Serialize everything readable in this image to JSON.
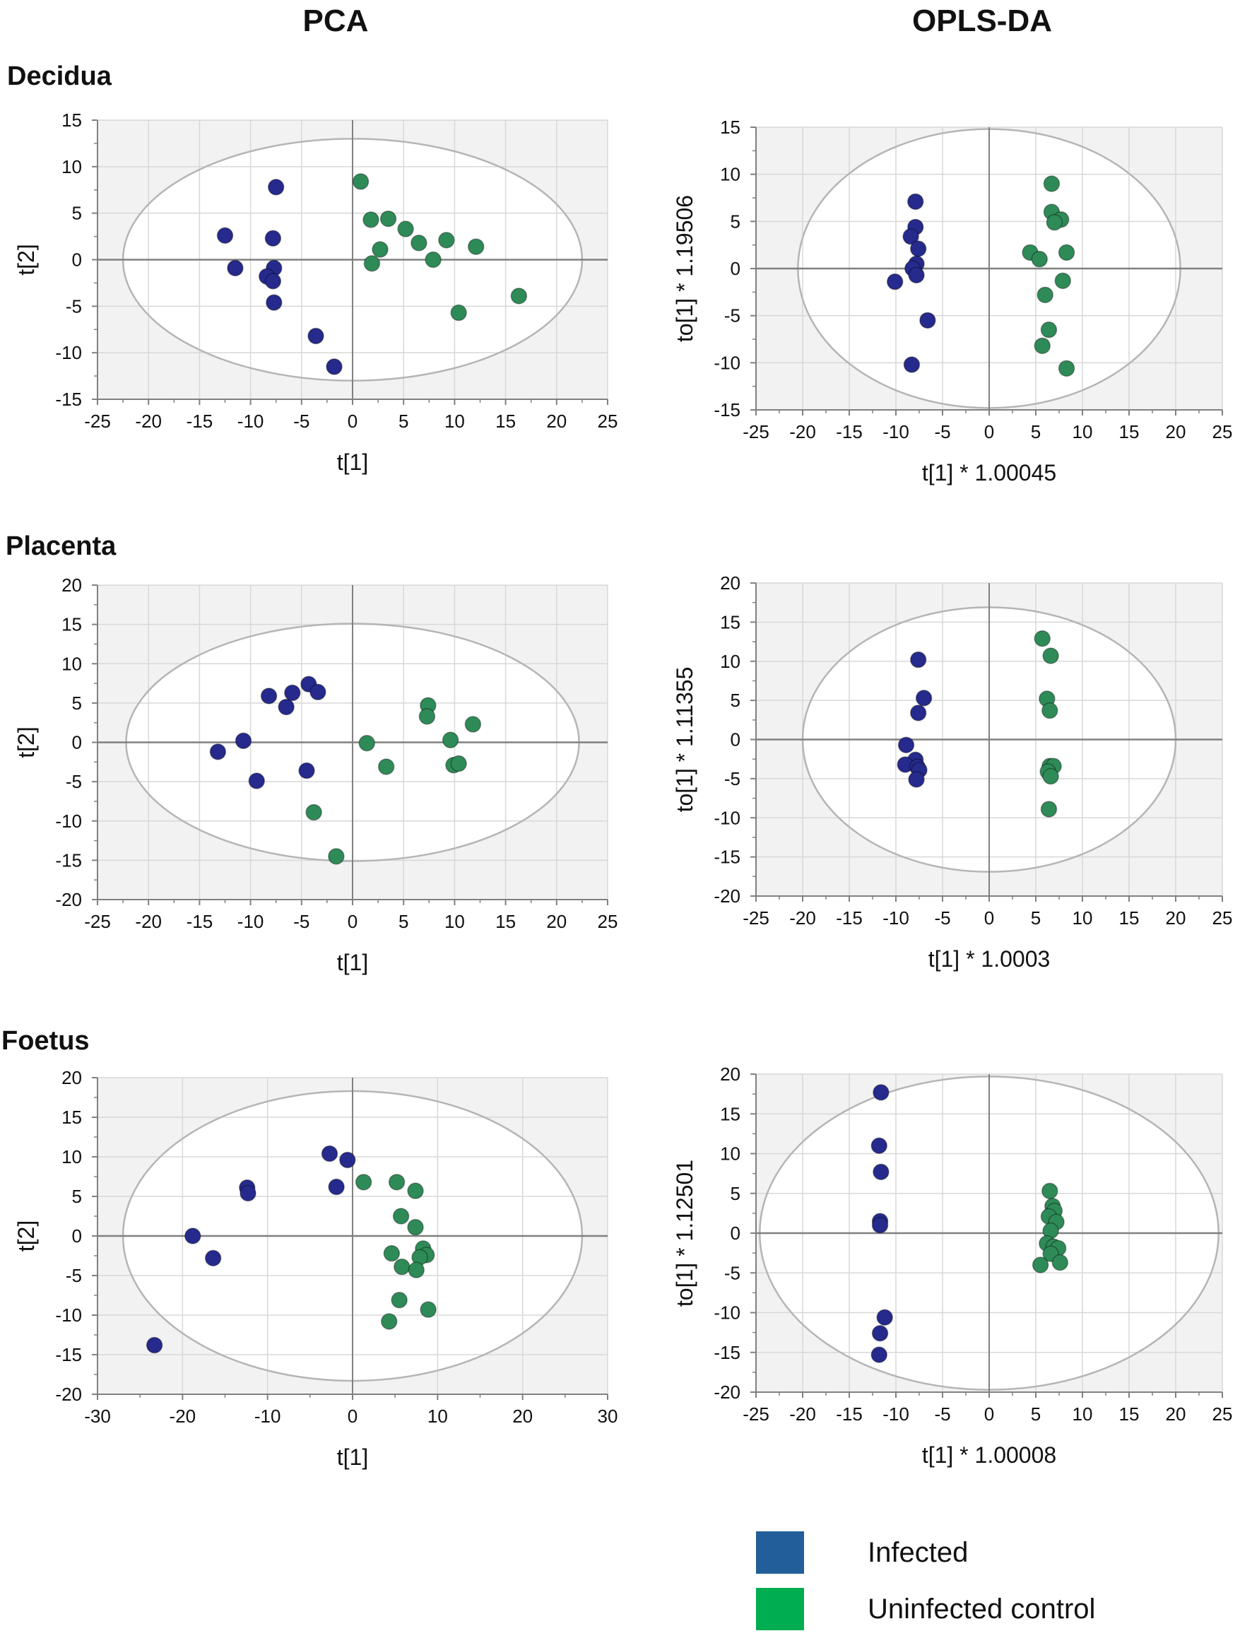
{
  "figure": {
    "column_titles": [
      "PCA",
      "OPLS-DA"
    ],
    "row_titles": [
      "Decidua",
      "Placenta",
      "Foetus"
    ],
    "colors": {
      "infected": "#262a8c",
      "uninfected": "#2e8b57",
      "background_band": "#f2f2f2",
      "grid": "#d8d8d8",
      "axis": "#808080",
      "ellipse": "#b5b5b5"
    },
    "legend": [
      {
        "label": "Infected",
        "color": "#225f9a"
      },
      {
        "label": "Uninfected control",
        "color": "#00ad50"
      }
    ]
  },
  "chart_data": [
    {
      "id": "decidua-pca",
      "type": "scatter",
      "title": "Decidua PCA",
      "xlabel": "t[1]",
      "ylabel": "t[2]",
      "xlim": [
        -25,
        25
      ],
      "ylim": [
        -15,
        15
      ],
      "xticks": [
        -25,
        -20,
        -15,
        -10,
        -5,
        0,
        5,
        10,
        15,
        20,
        25
      ],
      "yticks": [
        -15,
        -10,
        -5,
        0,
        5,
        10,
        15
      ],
      "ellipse": {
        "rx": 22.5,
        "ry": 13
      },
      "grid": true,
      "series": [
        {
          "name": "Infected",
          "points": [
            [
              -12.5,
              2.6
            ],
            [
              -11.5,
              -0.9
            ],
            [
              -7.5,
              7.8
            ],
            [
              -7.8,
              2.3
            ],
            [
              -7.7,
              -0.9
            ],
            [
              -8.4,
              -1.8
            ],
            [
              -7.8,
              -2.3
            ],
            [
              -7.7,
              -4.6
            ],
            [
              -3.6,
              -8.2
            ],
            [
              -1.8,
              -11.5
            ]
          ]
        },
        {
          "name": "Uninfected control",
          "points": [
            [
              0.8,
              8.4
            ],
            [
              1.8,
              4.3
            ],
            [
              3.5,
              4.4
            ],
            [
              5.2,
              3.3
            ],
            [
              6.5,
              1.8
            ],
            [
              9.2,
              2.1
            ],
            [
              12.1,
              1.4
            ],
            [
              2.7,
              1.1
            ],
            [
              1.9,
              -0.4
            ],
            [
              7.9,
              0.0
            ],
            [
              10.4,
              -5.7
            ],
            [
              16.3,
              -3.9
            ]
          ]
        }
      ]
    },
    {
      "id": "decidua-opls",
      "type": "scatter",
      "title": "Decidua OPLS-DA",
      "xlabel": "t[1] * 1.00045",
      "ylabel": "to[1] * 1.19506",
      "xlim": [
        -25,
        25
      ],
      "ylim": [
        -15,
        15
      ],
      "xticks": [
        -25,
        -20,
        -15,
        -10,
        -5,
        0,
        5,
        10,
        15,
        20,
        25
      ],
      "yticks": [
        -15,
        -10,
        -5,
        0,
        5,
        10,
        15
      ],
      "ellipse": {
        "rx": 20.5,
        "ry": 14.8
      },
      "grid": true,
      "series": [
        {
          "name": "Infected",
          "points": [
            [
              -7.9,
              7.1
            ],
            [
              -7.9,
              4.4
            ],
            [
              -8.4,
              3.4
            ],
            [
              -7.6,
              2.1
            ],
            [
              -7.8,
              0.5
            ],
            [
              -8.2,
              0.0
            ],
            [
              -7.8,
              -0.7
            ],
            [
              -10.1,
              -1.4
            ],
            [
              -6.6,
              -5.5
            ],
            [
              -8.3,
              -10.2
            ]
          ]
        },
        {
          "name": "Uninfected control",
          "points": [
            [
              6.7,
              9.0
            ],
            [
              6.7,
              6.0
            ],
            [
              7.7,
              5.2
            ],
            [
              7.0,
              4.9
            ],
            [
              4.4,
              1.7
            ],
            [
              5.4,
              1.0
            ],
            [
              8.3,
              1.7
            ],
            [
              7.9,
              -1.3
            ],
            [
              6.0,
              -2.8
            ],
            [
              6.4,
              -6.5
            ],
            [
              5.7,
              -8.2
            ],
            [
              8.3,
              -10.6
            ]
          ]
        }
      ]
    },
    {
      "id": "placenta-pca",
      "type": "scatter",
      "title": "Placenta PCA",
      "xlabel": "t[1]",
      "ylabel": "t[2]",
      "xlim": [
        -25,
        25
      ],
      "ylim": [
        -20,
        20
      ],
      "xticks": [
        -25,
        -20,
        -15,
        -10,
        -5,
        0,
        5,
        10,
        15,
        20,
        25
      ],
      "yticks": [
        -20,
        -15,
        -10,
        -5,
        0,
        5,
        10,
        15,
        20
      ],
      "ellipse": {
        "rx": 22.2,
        "ry": 15.1
      },
      "grid": true,
      "series": [
        {
          "name": "Infected",
          "points": [
            [
              -13.2,
              -1.2
            ],
            [
              -10.7,
              0.2
            ],
            [
              -8.2,
              5.9
            ],
            [
              -6.5,
              4.5
            ],
            [
              -5.9,
              6.3
            ],
            [
              -4.3,
              7.4
            ],
            [
              -3.4,
              6.4
            ],
            [
              -9.4,
              -4.9
            ],
            [
              -4.5,
              -3.6
            ]
          ]
        },
        {
          "name": "Uninfected control",
          "points": [
            [
              1.4,
              -0.1
            ],
            [
              3.3,
              -3.1
            ],
            [
              7.4,
              4.7
            ],
            [
              7.3,
              3.3
            ],
            [
              11.8,
              2.3
            ],
            [
              9.6,
              0.3
            ],
            [
              9.9,
              -2.9
            ],
            [
              10.4,
              -2.7
            ],
            [
              -3.8,
              -8.9
            ],
            [
              -1.6,
              -14.5
            ]
          ]
        }
      ]
    },
    {
      "id": "placenta-opls",
      "type": "scatter",
      "title": "Placenta OPLS-DA",
      "xlabel": "t[1] * 1.0003",
      "ylabel": "to[1] * 1.11355",
      "xlim": [
        -25,
        25
      ],
      "ylim": [
        -20,
        20
      ],
      "xticks": [
        -25,
        -20,
        -15,
        -10,
        -5,
        0,
        5,
        10,
        15,
        20,
        25
      ],
      "yticks": [
        -20,
        -15,
        -10,
        -5,
        0,
        5,
        10,
        15,
        20
      ],
      "ellipse": {
        "rx": 20,
        "ry": 16.9
      },
      "grid": true,
      "series": [
        {
          "name": "Infected",
          "points": [
            [
              -7.6,
              10.2
            ],
            [
              -7.0,
              5.3
            ],
            [
              -7.6,
              3.4
            ],
            [
              -8.9,
              -0.7
            ],
            [
              -7.9,
              -2.6
            ],
            [
              -9.0,
              -3.2
            ],
            [
              -7.7,
              -3.5
            ],
            [
              -7.5,
              -3.9
            ],
            [
              -7.8,
              -5.1
            ]
          ]
        },
        {
          "name": "Uninfected control",
          "points": [
            [
              5.7,
              12.9
            ],
            [
              6.6,
              10.7
            ],
            [
              6.2,
              5.2
            ],
            [
              6.5,
              3.7
            ],
            [
              6.5,
              -3.4
            ],
            [
              6.9,
              -3.4
            ],
            [
              6.3,
              -4.1
            ],
            [
              6.6,
              -4.7
            ],
            [
              6.4,
              -8.9
            ]
          ]
        }
      ]
    },
    {
      "id": "foetus-pca",
      "type": "scatter",
      "title": "Foetus PCA",
      "xlabel": "t[1]",
      "ylabel": "t[2]",
      "xlim": [
        -30,
        30
      ],
      "ylim": [
        -20,
        20
      ],
      "xticks": [
        -30,
        -20,
        -10,
        0,
        10,
        20,
        30
      ],
      "yticks": [
        -20,
        -15,
        -10,
        -5,
        0,
        5,
        10,
        15,
        20
      ],
      "ellipse": {
        "rx": 27,
        "ry": 18.3
      },
      "grid": true,
      "series": [
        {
          "name": "Infected",
          "points": [
            [
              -23.3,
              -13.8
            ],
            [
              -18.8,
              0.0
            ],
            [
              -16.4,
              -2.8
            ],
            [
              -12.4,
              6.1
            ],
            [
              -12.3,
              5.4
            ],
            [
              -2.7,
              10.4
            ],
            [
              -0.6,
              9.6
            ],
            [
              -1.9,
              6.2
            ]
          ]
        },
        {
          "name": "Uninfected control",
          "points": [
            [
              1.3,
              6.8
            ],
            [
              5.2,
              6.8
            ],
            [
              7.4,
              5.7
            ],
            [
              5.7,
              2.5
            ],
            [
              7.4,
              1.1
            ],
            [
              4.6,
              -2.2
            ],
            [
              8.3,
              -1.6
            ],
            [
              8.7,
              -2.4
            ],
            [
              7.9,
              -2.7
            ],
            [
              5.8,
              -3.9
            ],
            [
              7.5,
              -4.3
            ],
            [
              5.5,
              -8.1
            ],
            [
              8.9,
              -9.3
            ],
            [
              4.3,
              -10.8
            ]
          ]
        }
      ]
    },
    {
      "id": "foetus-opls",
      "type": "scatter",
      "title": "Foetus OPLS-DA",
      "xlabel": "t[1] * 1.00008",
      "ylabel": "to[1] * 1.12501",
      "xlim": [
        -25,
        25
      ],
      "ylim": [
        -20,
        20
      ],
      "xticks": [
        -25,
        -20,
        -15,
        -10,
        -5,
        0,
        5,
        10,
        15,
        20,
        25
      ],
      "yticks": [
        -20,
        -15,
        -10,
        -5,
        0,
        5,
        10,
        15,
        20
      ],
      "ellipse": {
        "rx": 24.6,
        "ry": 19.7
      },
      "grid": true,
      "series": [
        {
          "name": "Infected",
          "points": [
            [
              -11.6,
              17.7
            ],
            [
              -11.8,
              11.0
            ],
            [
              -11.6,
              7.7
            ],
            [
              -11.7,
              1.5
            ],
            [
              -11.7,
              1.0
            ],
            [
              -11.2,
              -10.6
            ],
            [
              -11.7,
              -12.6
            ],
            [
              -11.8,
              -15.3
            ]
          ]
        },
        {
          "name": "Uninfected control",
          "points": [
            [
              6.5,
              5.3
            ],
            [
              6.8,
              3.4
            ],
            [
              7.0,
              2.8
            ],
            [
              6.4,
              2.1
            ],
            [
              7.2,
              1.4
            ],
            [
              6.6,
              0.3
            ],
            [
              6.2,
              -1.3
            ],
            [
              6.9,
              -1.7
            ],
            [
              7.4,
              -1.9
            ],
            [
              6.6,
              -2.6
            ],
            [
              7.6,
              -3.7
            ],
            [
              5.5,
              -4.0
            ]
          ]
        }
      ]
    }
  ]
}
